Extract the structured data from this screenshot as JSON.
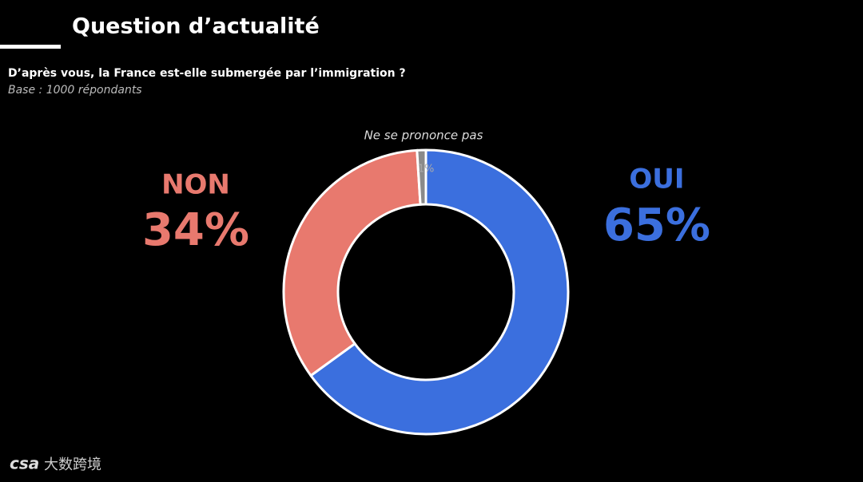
{
  "chart_data": {
    "type": "pie",
    "title": "Question d’actualité",
    "subtitle": "D’après vous, la France est-elle submergée par l’immigration ?",
    "note": "Base : 1000 répondants",
    "categories": [
      "OUI",
      "NON",
      "Ne se prononce pas"
    ],
    "values": [
      65,
      34,
      1
    ],
    "value_labels": [
      "65%",
      "34%",
      "1%"
    ],
    "colors": [
      "#3b6fde",
      "#e8796e",
      "#8a8a8a"
    ],
    "donut": true,
    "logo": "csa",
    "watermark": "大数跨境"
  }
}
